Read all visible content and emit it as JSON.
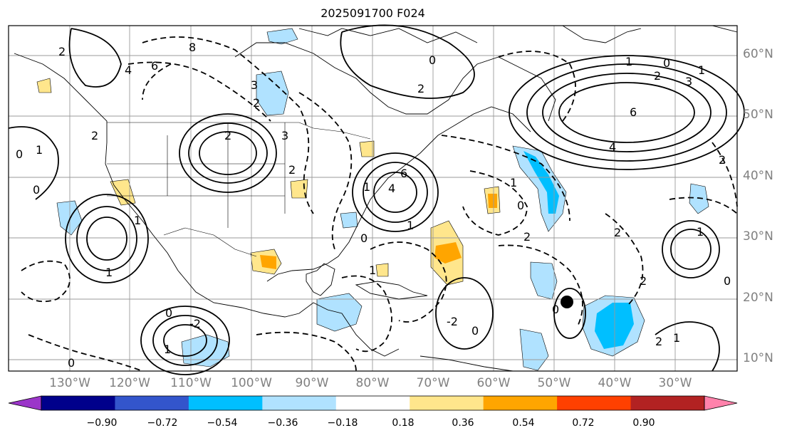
{
  "title": "2025091700 F024",
  "lat_labels": [
    "60°N",
    "50°N",
    "40°N",
    "30°N",
    "20°N",
    "10°N"
  ],
  "lon_labels": [
    "130°W",
    "120°W",
    "110°W",
    "100°W",
    "90°W",
    "80°W",
    "70°W",
    "60°W",
    "50°W",
    "40°W",
    "30°W"
  ],
  "colorbar": {
    "colors": [
      "#9b35c9",
      "#00008b",
      "#3355cc",
      "#00bfff",
      "#b0e2ff",
      "#ffffff",
      "#ffe68c",
      "#ffa500",
      "#ff4000",
      "#b22222",
      "#ff82ab"
    ],
    "labels": [
      "−0.90",
      "−0.72",
      "−0.54",
      "−0.36",
      "−0.18",
      "0.18",
      "0.36",
      "0.54",
      "0.72",
      "0.90"
    ]
  },
  "contour_labels": [
    "8",
    "6",
    "4",
    "2",
    "3",
    "2",
    "2",
    "3",
    "0",
    "1",
    "2",
    "6",
    "4",
    "2",
    "1",
    "0",
    "3",
    "2",
    "0",
    "1",
    "0",
    "1",
    "2",
    "0",
    "1",
    "1",
    "2",
    "0",
    "-2",
    "1",
    "0",
    "-2",
    "0",
    "2",
    "6",
    "4",
    "1",
    "0",
    "1",
    "2",
    "0",
    "2",
    "1",
    "0",
    "1",
    "2",
    "1"
  ],
  "storm_marker": "tropical-cyclone-center"
}
